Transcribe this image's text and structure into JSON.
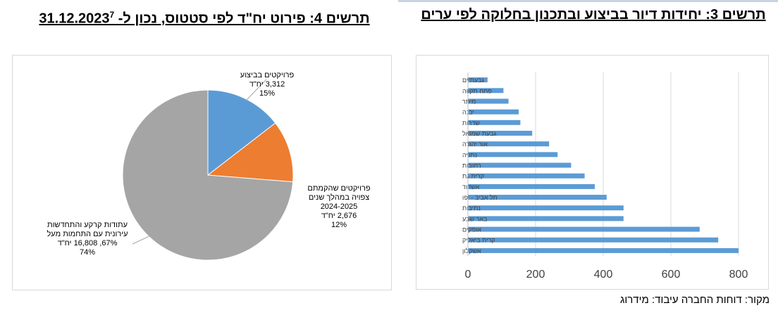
{
  "titles": {
    "right": "תרשים 3: יחידות דיור בביצוע ובתכנון בחלוקה לפי ערים",
    "left_text": "תרשים 4: פירוט יח\"ד לפי סטטוס, נכון ל- 31.12.2023",
    "left_footnote": "7"
  },
  "source": "מקור: דוחות החברה עיבוד: מידרוג",
  "colors": {
    "blue": "#5b9bd5",
    "orange": "#ed7d31",
    "gray": "#a5a5a5"
  },
  "chart_data": [
    {
      "type": "pie",
      "slices": [
        {
          "label_lines": [
            "פרויקטים בביצוע",
            "3,312 יח\"ד",
            "15%"
          ],
          "value": 3312,
          "percent": 15,
          "color": "#5b9bd5"
        },
        {
          "label_lines": [
            "פרויקטים שהקמתם",
            "צפויה במהלך שנים",
            "2024-2025",
            "2,676 יח\"ד",
            "12%"
          ],
          "value": 2676,
          "percent": 12,
          "color": "#ed7d31"
        },
        {
          "label_lines": [
            "עתודות קרקע והתחדשות",
            "עירונית עם התחמות מעל",
            "67%, 16,808 יח\"ד",
            "74%"
          ],
          "value": 16808,
          "percent": 74,
          "color": "#a5a5a5"
        }
      ]
    },
    {
      "type": "bar",
      "orientation": "horizontal",
      "categories": [
        "גבעתיים",
        "פתח תקווה",
        "מיתר",
        "יבנה",
        "שדרות",
        "גבעת שמואל",
        "אור יהודה",
        "נתניה",
        "רחובות",
        "קרית גת",
        "אשדוד",
        "תל אביב - יפו",
        "נתיבות",
        "באר שבע",
        "אופקים",
        "קרית ביאליק",
        "אשקלון"
      ],
      "values": [
        58,
        105,
        120,
        150,
        155,
        190,
        240,
        265,
        305,
        345,
        375,
        410,
        460,
        460,
        685,
        740,
        800
      ],
      "xlim": [
        0,
        800
      ],
      "xticks": [
        "0",
        "200",
        "400",
        "600",
        "800"
      ],
      "grid": true,
      "color": "#5b9bd5"
    }
  ]
}
